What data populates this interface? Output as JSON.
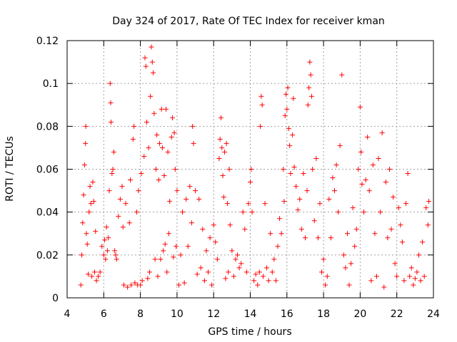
{
  "chart_data": {
    "type": "scatter",
    "title": "Day 324 of 2017, Rate Of TEC Index for receiver kman",
    "xlabel": "GPS time / hours",
    "ylabel": "ROTI / TECUs",
    "xlim": [
      4,
      24
    ],
    "ylim": [
      0,
      0.12
    ],
    "xticks": [
      "4",
      "6",
      "8",
      "10",
      "12",
      "14",
      "16",
      "18",
      "20",
      "22",
      "24"
    ],
    "yticks": [
      "0",
      "0.02",
      "0.04",
      "0.06",
      "0.08",
      "0.1",
      "0.12"
    ],
    "grid": true,
    "marker": "+",
    "color": "#ff0000",
    "points": [
      [
        4.75,
        0.006
      ],
      [
        4.8,
        0.02
      ],
      [
        4.85,
        0.035
      ],
      [
        4.9,
        0.048
      ],
      [
        4.95,
        0.062
      ],
      [
        5.0,
        0.072
      ],
      [
        5.02,
        0.08
      ],
      [
        5.05,
        0.03
      ],
      [
        5.1,
        0.025
      ],
      [
        5.15,
        0.011
      ],
      [
        5.2,
        0.04
      ],
      [
        5.25,
        0.052
      ],
      [
        5.3,
        0.044
      ],
      [
        5.35,
        0.01
      ],
      [
        5.4,
        0.054
      ],
      [
        5.45,
        0.045
      ],
      [
        5.5,
        0.012
      ],
      [
        5.55,
        0.031
      ],
      [
        5.6,
        0.008
      ],
      [
        5.7,
        0.01
      ],
      [
        5.8,
        0.012
      ],
      [
        5.9,
        0.024
      ],
      [
        6.0,
        0.02
      ],
      [
        6.05,
        0.027
      ],
      [
        6.1,
        0.018
      ],
      [
        6.15,
        0.033
      ],
      [
        6.2,
        0.022
      ],
      [
        6.25,
        0.028
      ],
      [
        6.3,
        0.05
      ],
      [
        6.35,
        0.1
      ],
      [
        6.38,
        0.091
      ],
      [
        6.4,
        0.082
      ],
      [
        6.45,
        0.058
      ],
      [
        6.5,
        0.06
      ],
      [
        6.55,
        0.068
      ],
      [
        6.6,
        0.022
      ],
      [
        6.65,
        0.02
      ],
      [
        6.7,
        0.018
      ],
      [
        6.8,
        0.038
      ],
      [
        6.9,
        0.046
      ],
      [
        7.0,
        0.052
      ],
      [
        7.05,
        0.033
      ],
      [
        7.1,
        0.006
      ],
      [
        7.2,
        0.044
      ],
      [
        7.3,
        0.005
      ],
      [
        7.4,
        0.035
      ],
      [
        7.45,
        0.055
      ],
      [
        7.5,
        0.006
      ],
      [
        7.6,
        0.074
      ],
      [
        7.65,
        0.08
      ],
      [
        7.7,
        0.007
      ],
      [
        7.8,
        0.04
      ],
      [
        7.85,
        0.006
      ],
      [
        7.9,
        0.05
      ],
      [
        8.0,
        0.006
      ],
      [
        8.05,
        0.058
      ],
      [
        8.1,
        0.008
      ],
      [
        8.2,
        0.066
      ],
      [
        8.25,
        0.112
      ],
      [
        8.3,
        0.108
      ],
      [
        8.35,
        0.082
      ],
      [
        8.4,
        0.009
      ],
      [
        8.45,
        0.07
      ],
      [
        8.5,
        0.012
      ],
      [
        8.55,
        0.094
      ],
      [
        8.6,
        0.117
      ],
      [
        8.65,
        0.11
      ],
      [
        8.7,
        0.105
      ],
      [
        8.75,
        0.086
      ],
      [
        8.8,
        0.018
      ],
      [
        8.85,
        0.06
      ],
      [
        8.9,
        0.076
      ],
      [
        8.95,
        0.01
      ],
      [
        9.0,
        0.055
      ],
      [
        9.05,
        0.072
      ],
      [
        9.1,
        0.018
      ],
      [
        9.15,
        0.088
      ],
      [
        9.2,
        0.07
      ],
      [
        9.25,
        0.022
      ],
      [
        9.3,
        0.057
      ],
      [
        9.35,
        0.025
      ],
      [
        9.4,
        0.088
      ],
      [
        9.45,
        0.012
      ],
      [
        9.5,
        0.068
      ],
      [
        9.55,
        0.03
      ],
      [
        9.6,
        0.045
      ],
      [
        9.7,
        0.075
      ],
      [
        9.75,
        0.084
      ],
      [
        9.8,
        0.019
      ],
      [
        9.85,
        0.077
      ],
      [
        9.9,
        0.06
      ],
      [
        9.95,
        0.024
      ],
      [
        10.0,
        0.05
      ],
      [
        10.1,
        0.006
      ],
      [
        10.2,
        0.02
      ],
      [
        10.3,
        0.04
      ],
      [
        10.4,
        0.007
      ],
      [
        10.5,
        0.046
      ],
      [
        10.6,
        0.024
      ],
      [
        10.7,
        0.052
      ],
      [
        10.8,
        0.035
      ],
      [
        10.85,
        0.08
      ],
      [
        10.9,
        0.072
      ],
      [
        11.0,
        0.05
      ],
      [
        11.1,
        0.011
      ],
      [
        11.2,
        0.046
      ],
      [
        11.3,
        0.014
      ],
      [
        11.4,
        0.032
      ],
      [
        11.5,
        0.008
      ],
      [
        11.6,
        0.022
      ],
      [
        11.7,
        0.012
      ],
      [
        11.8,
        0.028
      ],
      [
        11.9,
        0.006
      ],
      [
        12.0,
        0.034
      ],
      [
        12.1,
        0.026
      ],
      [
        12.2,
        0.018
      ],
      [
        12.3,
        0.065
      ],
      [
        12.35,
        0.074
      ],
      [
        12.4,
        0.084
      ],
      [
        12.45,
        0.07
      ],
      [
        12.5,
        0.057
      ],
      [
        12.55,
        0.047
      ],
      [
        12.6,
        0.068
      ],
      [
        12.65,
        0.009
      ],
      [
        12.7,
        0.072
      ],
      [
        12.75,
        0.044
      ],
      [
        12.8,
        0.012
      ],
      [
        12.85,
        0.06
      ],
      [
        12.9,
        0.034
      ],
      [
        13.0,
        0.022
      ],
      [
        13.1,
        0.01
      ],
      [
        13.2,
        0.018
      ],
      [
        13.3,
        0.02
      ],
      [
        13.4,
        0.014
      ],
      [
        13.5,
        0.016
      ],
      [
        13.6,
        0.04
      ],
      [
        13.7,
        0.032
      ],
      [
        13.8,
        0.012
      ],
      [
        13.9,
        0.044
      ],
      [
        14.0,
        0.054
      ],
      [
        14.05,
        0.06
      ],
      [
        14.1,
        0.04
      ],
      [
        14.2,
        0.008
      ],
      [
        14.3,
        0.011
      ],
      [
        14.4,
        0.006
      ],
      [
        14.5,
        0.012
      ],
      [
        14.55,
        0.08
      ],
      [
        14.6,
        0.094
      ],
      [
        14.65,
        0.09
      ],
      [
        14.7,
        0.01
      ],
      [
        14.8,
        0.044
      ],
      [
        14.9,
        0.014
      ],
      [
        15.0,
        0.008
      ],
      [
        15.1,
        0.03
      ],
      [
        15.2,
        0.012
      ],
      [
        15.3,
        0.018
      ],
      [
        15.4,
        0.008
      ],
      [
        15.5,
        0.024
      ],
      [
        15.6,
        0.037
      ],
      [
        15.7,
        0.03
      ],
      [
        15.8,
        0.06
      ],
      [
        15.85,
        0.045
      ],
      [
        15.9,
        0.085
      ],
      [
        15.95,
        0.095
      ],
      [
        16.0,
        0.088
      ],
      [
        16.05,
        0.098
      ],
      [
        16.1,
        0.079
      ],
      [
        16.15,
        0.071
      ],
      [
        16.2,
        0.058
      ],
      [
        16.3,
        0.076
      ],
      [
        16.35,
        0.093
      ],
      [
        16.4,
        0.061
      ],
      [
        16.5,
        0.052
      ],
      [
        16.6,
        0.041
      ],
      [
        16.7,
        0.046
      ],
      [
        16.8,
        0.032
      ],
      [
        16.9,
        0.058
      ],
      [
        17.0,
        0.028
      ],
      [
        17.1,
        0.05
      ],
      [
        17.15,
        0.09
      ],
      [
        17.2,
        0.098
      ],
      [
        17.25,
        0.11
      ],
      [
        17.3,
        0.104
      ],
      [
        17.35,
        0.094
      ],
      [
        17.4,
        0.06
      ],
      [
        17.5,
        0.036
      ],
      [
        17.6,
        0.065
      ],
      [
        17.7,
        0.028
      ],
      [
        17.8,
        0.044
      ],
      [
        17.9,
        0.012
      ],
      [
        18.0,
        0.018
      ],
      [
        18.1,
        0.006
      ],
      [
        18.2,
        0.01
      ],
      [
        18.3,
        0.046
      ],
      [
        18.4,
        0.028
      ],
      [
        18.5,
        0.056
      ],
      [
        18.6,
        0.05
      ],
      [
        18.7,
        0.062
      ],
      [
        18.8,
        0.04
      ],
      [
        18.9,
        0.071
      ],
      [
        19.0,
        0.104
      ],
      [
        19.1,
        0.02
      ],
      [
        19.2,
        0.014
      ],
      [
        19.3,
        0.03
      ],
      [
        19.4,
        0.006
      ],
      [
        19.5,
        0.016
      ],
      [
        19.6,
        0.042
      ],
      [
        19.7,
        0.024
      ],
      [
        19.8,
        0.032
      ],
      [
        19.9,
        0.06
      ],
      [
        20.0,
        0.089
      ],
      [
        20.05,
        0.068
      ],
      [
        20.1,
        0.053
      ],
      [
        20.2,
        0.04
      ],
      [
        20.3,
        0.055
      ],
      [
        20.4,
        0.075
      ],
      [
        20.5,
        0.05
      ],
      [
        20.6,
        0.008
      ],
      [
        20.7,
        0.062
      ],
      [
        20.8,
        0.03
      ],
      [
        20.9,
        0.01
      ],
      [
        21.0,
        0.065
      ],
      [
        21.1,
        0.04
      ],
      [
        21.2,
        0.077
      ],
      [
        21.3,
        0.005
      ],
      [
        21.4,
        0.054
      ],
      [
        21.5,
        0.028
      ],
      [
        21.6,
        0.06
      ],
      [
        21.7,
        0.032
      ],
      [
        21.8,
        0.047
      ],
      [
        21.9,
        0.016
      ],
      [
        22.0,
        0.01
      ],
      [
        22.1,
        0.042
      ],
      [
        22.2,
        0.034
      ],
      [
        22.3,
        0.026
      ],
      [
        22.4,
        0.008
      ],
      [
        22.5,
        0.044
      ],
      [
        22.6,
        0.058
      ],
      [
        22.7,
        0.01
      ],
      [
        22.8,
        0.014
      ],
      [
        22.9,
        0.006
      ],
      [
        23.0,
        0.009
      ],
      [
        23.1,
        0.012
      ],
      [
        23.2,
        0.02
      ],
      [
        23.3,
        0.008
      ],
      [
        23.4,
        0.026
      ],
      [
        23.5,
        0.01
      ],
      [
        23.6,
        0.042
      ],
      [
        23.7,
        0.034
      ],
      [
        23.75,
        0.045
      ]
    ]
  }
}
